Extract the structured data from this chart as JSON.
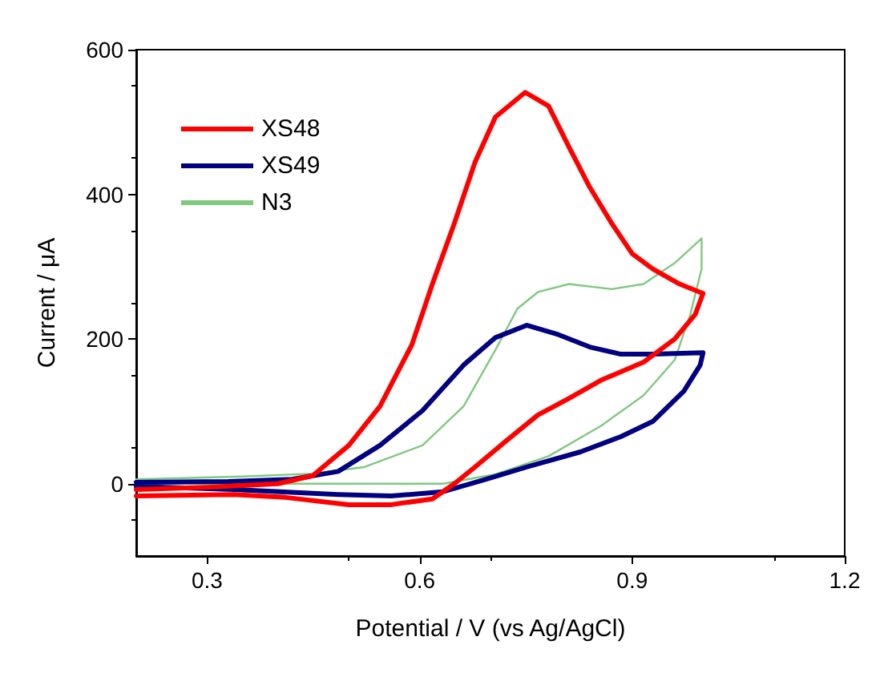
{
  "chart_data": {
    "type": "line",
    "xlabel": "Potential / V (vs Ag/AgCl)",
    "ylabel": "Current / μA",
    "xlim": [
      0.2,
      1.2
    ],
    "xticks": [
      0.3,
      0.6,
      0.9,
      1.2
    ],
    "ylim": [
      -100,
      600
    ],
    "yticks": [
      0,
      200,
      400,
      600
    ],
    "grid": false,
    "legend": "top left",
    "marker": "none",
    "line_style": "solid",
    "series": [
      {
        "name": "XS48",
        "color": "#ff0000",
        "x": [
          0.2,
          0.3,
          0.4,
          0.449,
          0.5,
          0.544,
          0.589,
          0.618,
          0.649,
          0.678,
          0.707,
          0.749,
          0.782,
          0.811,
          0.84,
          0.871,
          0.9,
          0.929,
          0.967,
          1.0,
          0.989,
          0.96,
          0.916,
          0.856,
          0.811,
          0.767,
          0.722,
          0.678,
          0.649,
          0.618,
          0.56,
          0.5,
          0.411,
          0.338,
          0.2
        ],
        "values": [
          -8,
          -5,
          0,
          11,
          53,
          107,
          192,
          276,
          360,
          444,
          507,
          541,
          522,
          465,
          410,
          360,
          318,
          297,
          276,
          263,
          234,
          200,
          168,
          143,
          118,
          95,
          59,
          23,
          0,
          -21,
          -29,
          -29,
          -19,
          -15,
          -17
        ]
      },
      {
        "name": "XS49",
        "color": "#000080",
        "x": [
          0.2,
          0.33,
          0.42,
          0.485,
          0.544,
          0.604,
          0.662,
          0.707,
          0.751,
          0.796,
          0.84,
          0.884,
          0.929,
          1.0,
          0.996,
          0.973,
          0.929,
          0.884,
          0.827,
          0.751,
          0.693,
          0.633,
          0.56,
          0.485,
          0.338,
          0.2
        ],
        "values": [
          2,
          3,
          6,
          17,
          53,
          101,
          164,
          202,
          219,
          206,
          189,
          179,
          179,
          181,
          164,
          128,
          86,
          65,
          44,
          23,
          6,
          -11,
          -17,
          -15,
          -8,
          -4
        ]
      },
      {
        "name": "N3",
        "color": "#80c880",
        "x": [
          0.2,
          0.35,
          0.45,
          0.522,
          0.604,
          0.662,
          0.707,
          0.738,
          0.767,
          0.811,
          0.871,
          0.916,
          0.96,
          0.998,
          0.998,
          0.982,
          0.96,
          0.916,
          0.856,
          0.782,
          0.707,
          0.633,
          0.478,
          0.338,
          0.2
        ],
        "values": [
          6,
          10,
          14,
          23,
          53,
          107,
          185,
          242,
          265,
          276,
          269,
          276,
          305,
          339,
          297,
          234,
          171,
          122,
          80,
          38,
          13,
          0,
          0,
          0,
          0
        ]
      }
    ]
  }
}
